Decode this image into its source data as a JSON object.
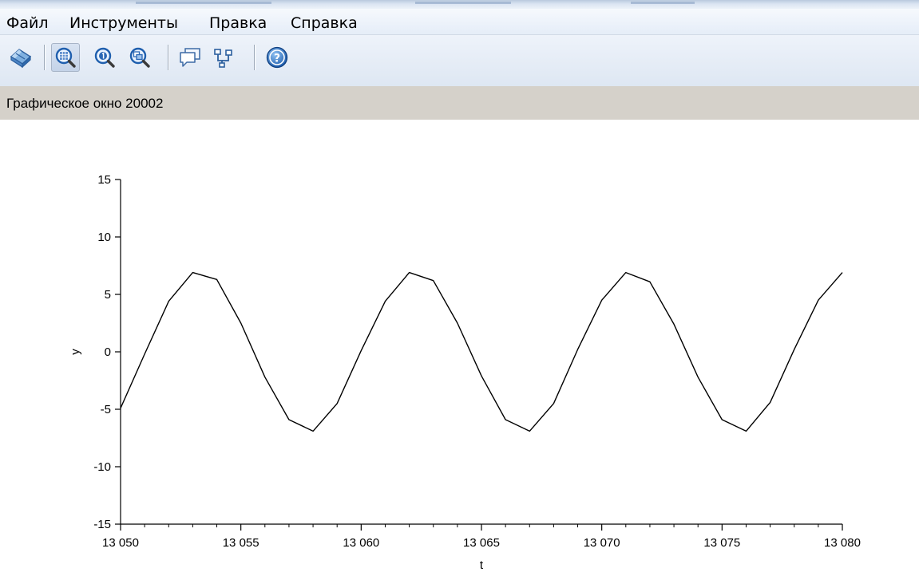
{
  "menu": {
    "items": [
      "Файл",
      "Инструменты",
      "Правка",
      "Справка"
    ]
  },
  "toolbar": {
    "buttons": [
      {
        "icon": "rotate-icon",
        "active": false
      },
      {
        "icon": "zoom-area-icon",
        "active": true
      },
      {
        "icon": "zoom-original-icon",
        "active": false
      },
      {
        "icon": "zoom-out-icon",
        "active": false
      },
      {
        "icon": "datatip-icon",
        "active": false
      },
      {
        "icon": "edit-curve-icon",
        "active": false
      },
      {
        "icon": "help-icon",
        "active": false
      }
    ]
  },
  "status": {
    "text": "Графическое окно 20002"
  },
  "chart_data": {
    "type": "line",
    "title": "",
    "xlabel": "t",
    "ylabel": "y",
    "xlim": [
      13050,
      13080
    ],
    "ylim": [
      -15,
      15
    ],
    "x_ticks": [
      13050,
      13055,
      13060,
      13065,
      13070,
      13075,
      13080
    ],
    "x_tick_labels": [
      "13 050",
      "13 055",
      "13 060",
      "13 065",
      "13 070",
      "13 075",
      "13 080"
    ],
    "y_ticks": [
      -15,
      -10,
      -5,
      0,
      5,
      10,
      15
    ],
    "y_tick_labels": [
      "-15",
      "-10",
      "-5",
      "0",
      "5",
      "10",
      "15"
    ],
    "grid": false,
    "series": [
      {
        "x": [
          13050,
          13051,
          13052,
          13053,
          13054,
          13055,
          13056,
          13057,
          13058,
          13059,
          13060,
          13061,
          13062,
          13063,
          13064,
          13065,
          13066,
          13067,
          13068,
          13069,
          13070,
          13071,
          13072,
          13073,
          13074,
          13075,
          13076,
          13077,
          13078,
          13079,
          13080
        ],
        "y": [
          -4.9,
          -0.2,
          4.4,
          6.9,
          6.3,
          2.5,
          -2.2,
          -5.9,
          -6.9,
          -4.5,
          0.1,
          4.4,
          6.9,
          6.2,
          2.5,
          -2.1,
          -5.9,
          -6.9,
          -4.5,
          0.2,
          4.5,
          6.9,
          6.1,
          2.4,
          -2.2,
          -5.9,
          -6.9,
          -4.4,
          0.2,
          4.5,
          6.9
        ],
        "color": "#000000"
      }
    ]
  }
}
